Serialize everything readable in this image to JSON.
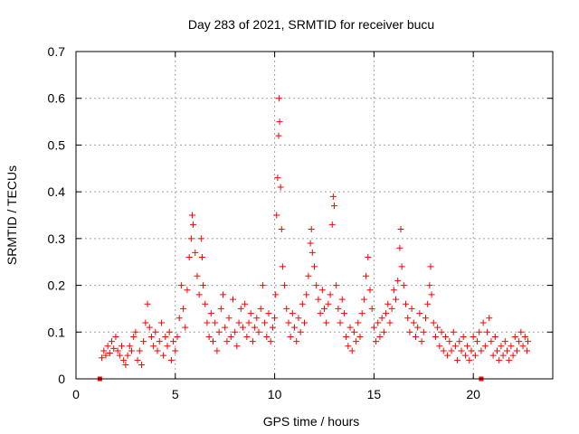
{
  "chart_data": {
    "type": "scatter",
    "title": "Day 283 of 2021, SRMTID for receiver bucu",
    "xlabel": "GPS time / hours",
    "ylabel": "SRMTID / TECUs",
    "xlim": [
      0,
      24
    ],
    "ylim": [
      0,
      0.7
    ],
    "xticks": [
      "0",
      "5",
      "10",
      "15",
      "20"
    ],
    "yticks": [
      "0",
      "0.1",
      "0.2",
      "0.3",
      "0.4",
      "0.5",
      "0.6",
      "0.7"
    ],
    "grid": true,
    "marker": "+",
    "color": "#ff0000",
    "end_markers": [
      {
        "x": 1.2,
        "y": 0.0
      },
      {
        "x": 20.4,
        "y": 0.0
      }
    ],
    "series": [
      {
        "name": "SRMTID",
        "points": [
          [
            1.3,
            0.045
          ],
          [
            1.4,
            0.06
          ],
          [
            1.5,
            0.05
          ],
          [
            1.6,
            0.07
          ],
          [
            1.7,
            0.055
          ],
          [
            1.8,
            0.08
          ],
          [
            1.9,
            0.065
          ],
          [
            2.0,
            0.09
          ],
          [
            2.1,
            0.06
          ],
          [
            2.2,
            0.05
          ],
          [
            2.3,
            0.07
          ],
          [
            2.4,
            0.04
          ],
          [
            2.5,
            0.03
          ],
          [
            2.6,
            0.05
          ],
          [
            2.7,
            0.07
          ],
          [
            2.8,
            0.06
          ],
          [
            2.9,
            0.09
          ],
          [
            3.0,
            0.1
          ],
          [
            3.1,
            0.04
          ],
          [
            3.2,
            0.06
          ],
          [
            3.3,
            0.03
          ],
          [
            3.4,
            0.08
          ],
          [
            3.5,
            0.12
          ],
          [
            3.6,
            0.16
          ],
          [
            3.7,
            0.11
          ],
          [
            3.8,
            0.09
          ],
          [
            3.9,
            0.07
          ],
          [
            4.0,
            0.1
          ],
          [
            4.1,
            0.06
          ],
          [
            4.2,
            0.08
          ],
          [
            4.3,
            0.12
          ],
          [
            4.4,
            0.05
          ],
          [
            4.5,
            0.09
          ],
          [
            4.6,
            0.07
          ],
          [
            4.7,
            0.1
          ],
          [
            4.8,
            0.04
          ],
          [
            4.9,
            0.08
          ],
          [
            5.0,
            0.06
          ],
          [
            5.1,
            0.09
          ],
          [
            5.2,
            0.13
          ],
          [
            5.3,
            0.2
          ],
          [
            5.4,
            0.15
          ],
          [
            5.5,
            0.11
          ],
          [
            5.6,
            0.19
          ],
          [
            5.7,
            0.26
          ],
          [
            5.8,
            0.3
          ],
          [
            5.85,
            0.35
          ],
          [
            5.9,
            0.33
          ],
          [
            6.0,
            0.27
          ],
          [
            6.1,
            0.22
          ],
          [
            6.2,
            0.18
          ],
          [
            6.3,
            0.3
          ],
          [
            6.35,
            0.26
          ],
          [
            6.4,
            0.2
          ],
          [
            6.5,
            0.16
          ],
          [
            6.6,
            0.12
          ],
          [
            6.7,
            0.09
          ],
          [
            6.8,
            0.14
          ],
          [
            6.9,
            0.08
          ],
          [
            7.0,
            0.12
          ],
          [
            7.1,
            0.06
          ],
          [
            7.2,
            0.1
          ],
          [
            7.3,
            0.15
          ],
          [
            7.4,
            0.18
          ],
          [
            7.5,
            0.11
          ],
          [
            7.6,
            0.08
          ],
          [
            7.7,
            0.13
          ],
          [
            7.8,
            0.09
          ],
          [
            7.9,
            0.17
          ],
          [
            8.0,
            0.1
          ],
          [
            8.1,
            0.07
          ],
          [
            8.2,
            0.12
          ],
          [
            8.3,
            0.15
          ],
          [
            8.4,
            0.11
          ],
          [
            8.5,
            0.16
          ],
          [
            8.6,
            0.09
          ],
          [
            8.7,
            0.12
          ],
          [
            8.8,
            0.14
          ],
          [
            8.9,
            0.08
          ],
          [
            9.0,
            0.11
          ],
          [
            9.1,
            0.13
          ],
          [
            9.2,
            0.1
          ],
          [
            9.3,
            0.15
          ],
          [
            9.4,
            0.2
          ],
          [
            9.5,
            0.12
          ],
          [
            9.6,
            0.09
          ],
          [
            9.7,
            0.14
          ],
          [
            9.8,
            0.08
          ],
          [
            9.9,
            0.11
          ],
          [
            10.0,
            0.13
          ],
          [
            10.05,
            0.18
          ],
          [
            10.1,
            0.35
          ],
          [
            10.15,
            0.43
          ],
          [
            10.2,
            0.52
          ],
          [
            10.22,
            0.6
          ],
          [
            10.25,
            0.55
          ],
          [
            10.3,
            0.41
          ],
          [
            10.35,
            0.32
          ],
          [
            10.4,
            0.24
          ],
          [
            10.5,
            0.2
          ],
          [
            10.6,
            0.15
          ],
          [
            10.7,
            0.12
          ],
          [
            10.8,
            0.09
          ],
          [
            10.9,
            0.14
          ],
          [
            11.0,
            0.11
          ],
          [
            11.1,
            0.08
          ],
          [
            11.2,
            0.13
          ],
          [
            11.3,
            0.1
          ],
          [
            11.4,
            0.16
          ],
          [
            11.5,
            0.12
          ],
          [
            11.6,
            0.18
          ],
          [
            11.7,
            0.22
          ],
          [
            11.8,
            0.29
          ],
          [
            11.85,
            0.32
          ],
          [
            11.9,
            0.27
          ],
          [
            12.0,
            0.24
          ],
          [
            12.1,
            0.2
          ],
          [
            12.2,
            0.17
          ],
          [
            12.3,
            0.14
          ],
          [
            12.4,
            0.19
          ],
          [
            12.5,
            0.15
          ],
          [
            12.6,
            0.12
          ],
          [
            12.7,
            0.16
          ],
          [
            12.8,
            0.18
          ],
          [
            12.9,
            0.33
          ],
          [
            12.95,
            0.39
          ],
          [
            13.0,
            0.37
          ],
          [
            13.1,
            0.2
          ],
          [
            13.2,
            0.15
          ],
          [
            13.3,
            0.12
          ],
          [
            13.4,
            0.17
          ],
          [
            13.5,
            0.14
          ],
          [
            13.6,
            0.09
          ],
          [
            13.7,
            0.07
          ],
          [
            13.8,
            0.11
          ],
          [
            13.9,
            0.06
          ],
          [
            14.0,
            0.1
          ],
          [
            14.1,
            0.08
          ],
          [
            14.2,
            0.12
          ],
          [
            14.3,
            0.09
          ],
          [
            14.4,
            0.14
          ],
          [
            14.5,
            0.17
          ],
          [
            14.6,
            0.22
          ],
          [
            14.7,
            0.26
          ],
          [
            14.8,
            0.19
          ],
          [
            14.9,
            0.15
          ],
          [
            15.0,
            0.11
          ],
          [
            15.1,
            0.08
          ],
          [
            15.2,
            0.12
          ],
          [
            15.3,
            0.09
          ],
          [
            15.4,
            0.13
          ],
          [
            15.5,
            0.1
          ],
          [
            15.6,
            0.14
          ],
          [
            15.7,
            0.16
          ],
          [
            15.8,
            0.12
          ],
          [
            15.9,
            0.15
          ],
          [
            16.0,
            0.19
          ],
          [
            16.1,
            0.17
          ],
          [
            16.2,
            0.21
          ],
          [
            16.3,
            0.28
          ],
          [
            16.35,
            0.32
          ],
          [
            16.4,
            0.24
          ],
          [
            16.5,
            0.2
          ],
          [
            16.6,
            0.16
          ],
          [
            16.7,
            0.13
          ],
          [
            16.8,
            0.1
          ],
          [
            16.9,
            0.15
          ],
          [
            17.0,
            0.12
          ],
          [
            17.1,
            0.09
          ],
          [
            17.2,
            0.11
          ],
          [
            17.3,
            0.14
          ],
          [
            17.4,
            0.08
          ],
          [
            17.5,
            0.1
          ],
          [
            17.6,
            0.13
          ],
          [
            17.7,
            0.16
          ],
          [
            17.8,
            0.2
          ],
          [
            17.85,
            0.24
          ],
          [
            17.9,
            0.18
          ],
          [
            18.0,
            0.12
          ],
          [
            18.1,
            0.09
          ],
          [
            18.2,
            0.11
          ],
          [
            18.3,
            0.07
          ],
          [
            18.4,
            0.1
          ],
          [
            18.5,
            0.06
          ],
          [
            18.6,
            0.09
          ],
          [
            18.7,
            0.05
          ],
          [
            18.8,
            0.08
          ],
          [
            18.9,
            0.06
          ],
          [
            19.0,
            0.1
          ],
          [
            19.1,
            0.07
          ],
          [
            19.2,
            0.04
          ],
          [
            19.3,
            0.08
          ],
          [
            19.4,
            0.06
          ],
          [
            19.5,
            0.09
          ],
          [
            19.6,
            0.05
          ],
          [
            19.7,
            0.07
          ],
          [
            19.8,
            0.04
          ],
          [
            19.9,
            0.06
          ],
          [
            20.0,
            0.09
          ],
          [
            20.1,
            0.05
          ],
          [
            20.2,
            0.08
          ],
          [
            20.3,
            0.1
          ],
          [
            20.4,
            0.06
          ],
          [
            20.5,
            0.12
          ],
          [
            20.6,
            0.07
          ],
          [
            20.7,
            0.1
          ],
          [
            20.8,
            0.13
          ],
          [
            20.9,
            0.08
          ],
          [
            21.0,
            0.05
          ],
          [
            21.1,
            0.09
          ],
          [
            21.2,
            0.06
          ],
          [
            21.3,
            0.04
          ],
          [
            21.4,
            0.07
          ],
          [
            21.5,
            0.05
          ],
          [
            21.6,
            0.08
          ],
          [
            21.7,
            0.06
          ],
          [
            21.8,
            0.04
          ],
          [
            21.9,
            0.07
          ],
          [
            22.0,
            0.05
          ],
          [
            22.1,
            0.09
          ],
          [
            22.2,
            0.06
          ],
          [
            22.3,
            0.08
          ],
          [
            22.4,
            0.1
          ],
          [
            22.5,
            0.07
          ],
          [
            22.6,
            0.09
          ],
          [
            22.7,
            0.06
          ],
          [
            22.75,
            0.08
          ]
        ]
      }
    ]
  }
}
